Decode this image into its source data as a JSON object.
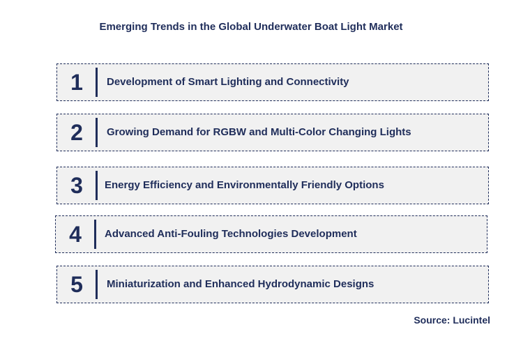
{
  "title": "Emerging Trends in the Global Underwater Boat Light Market",
  "trends": [
    {
      "number": "1",
      "label": "Development of Smart Lighting and Connectivity"
    },
    {
      "number": "2",
      "label": "Growing Demand for RGBW and Multi-Color Changing Lights"
    },
    {
      "number": "3",
      "label": "Energy Efficiency and Environmentally Friendly Options"
    },
    {
      "number": "4",
      "label": "Advanced Anti-Fouling Technologies Development"
    },
    {
      "number": "5",
      "label": "Miniaturization and Enhanced Hydrodynamic Designs"
    }
  ],
  "source": "Source: Lucintel",
  "colors": {
    "text": "#1f2d5a",
    "box_fill": "#f1f1f1",
    "background": "#ffffff"
  }
}
